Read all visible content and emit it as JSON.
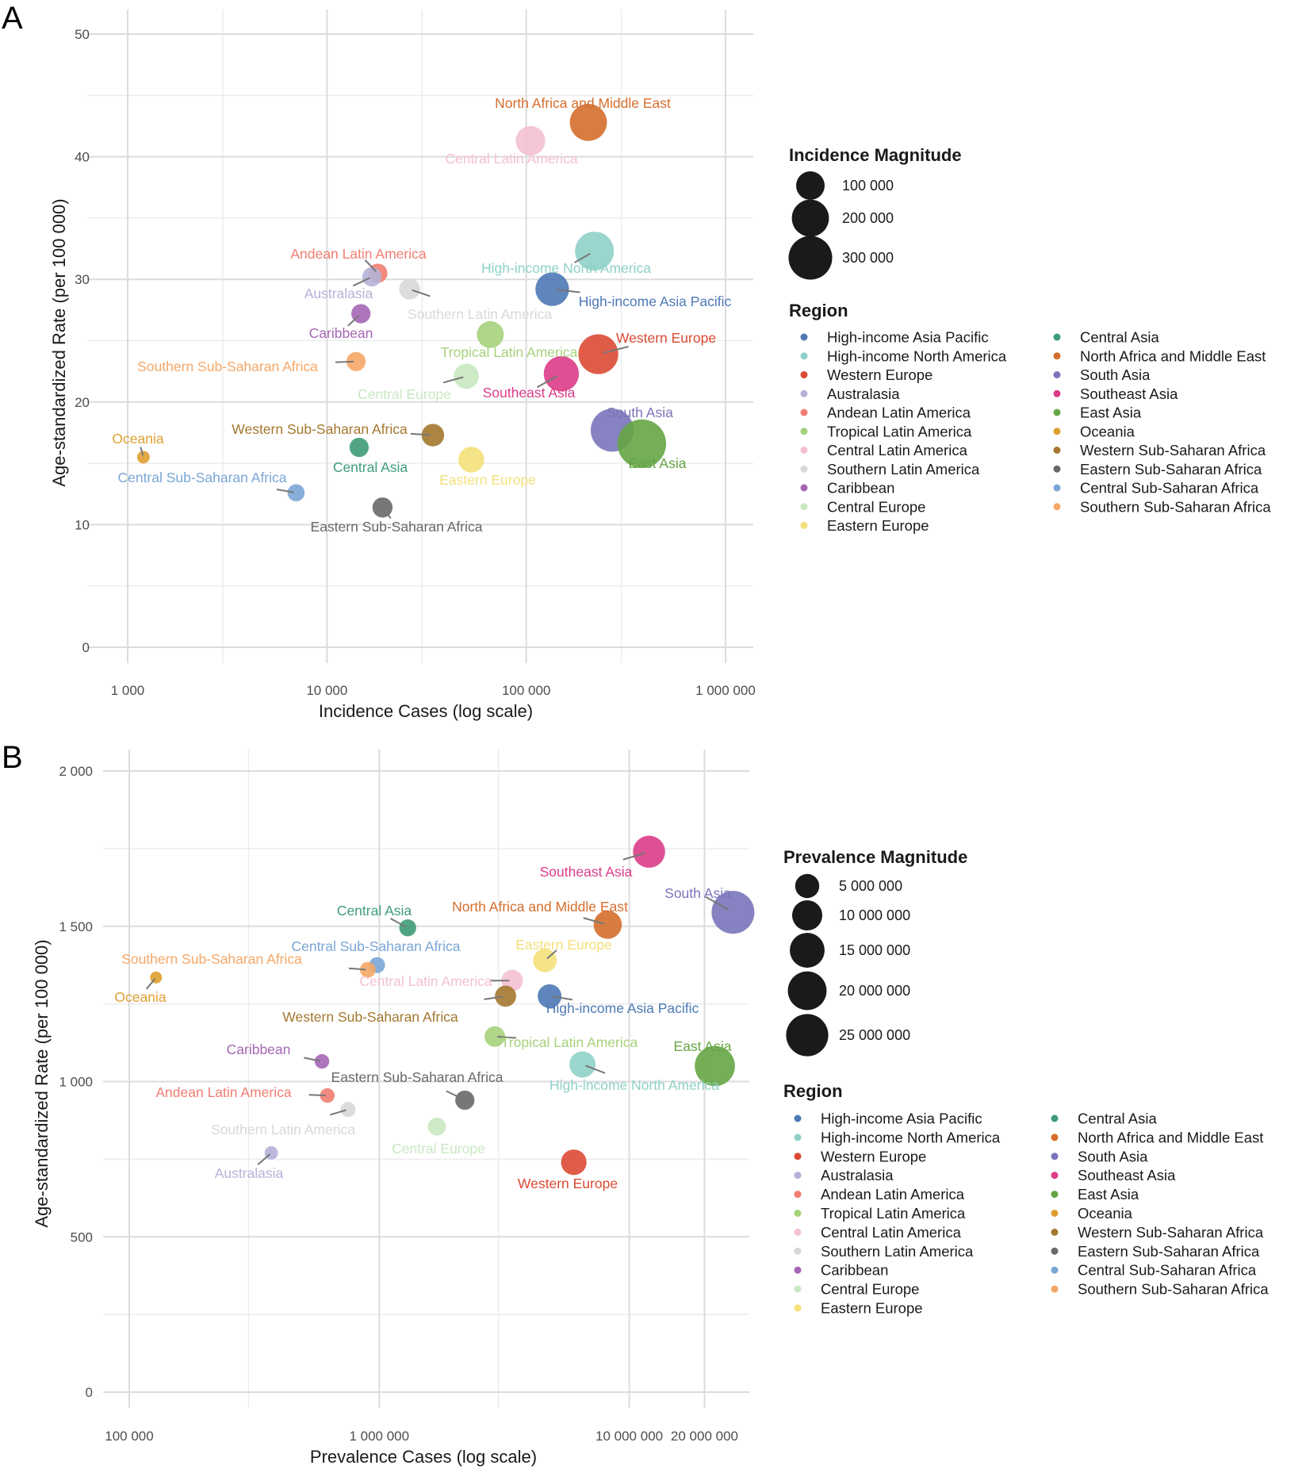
{
  "region_colors": {
    "High-income Asia Pacific": "#4e79b5",
    "High-income North America": "#8fd1c8",
    "Western Europe": "#dc4a34",
    "Australasia": "#b5b2d8",
    "Andean Latin America": "#f07d72",
    "Tropical Latin America": "#a7d27c",
    "Central Latin America": "#f3c0d4",
    "Southern Latin America": "#d8d8d8",
    "Caribbean": "#a566b5",
    "Central Europe": "#c9e8c1",
    "Eastern Europe": "#f4e07a",
    "Central Asia": "#3e9b78",
    "North Africa and Middle East": "#d56e2d",
    "South Asia": "#7a74ba",
    "Southeast Asia": "#dc3c88",
    "East Asia": "#65a544",
    "Oceania": "#df9f30",
    "Western Sub-Saharan Africa": "#a4782f",
    "Eastern Sub-Saharan Africa": "#686868",
    "Central Sub-Saharan Africa": "#7aa6d6",
    "Southern Sub-Saharan Africa": "#f5a767"
  },
  "chart_data": [
    {
      "panel_letter": "A",
      "type": "scatter",
      "xlabel": "Incidence Cases (log scale)",
      "ylabel": "Age-standardized Rate (per 100 000)",
      "xscale": "log",
      "xlim": [
        1000,
        1000000
      ],
      "ylim": [
        0,
        50
      ],
      "xticks": [
        1000,
        10000,
        100000,
        1000000
      ],
      "xtick_labels": [
        "1 000",
        "10 000",
        "100 000",
        "1 000 000"
      ],
      "yticks": [
        0,
        10,
        20,
        30,
        40,
        50
      ],
      "ytick_labels": [
        "0",
        "10",
        "20",
        "30",
        "40",
        "50"
      ],
      "grid": true,
      "size_legend": {
        "title": "Incidence Magnitude",
        "values": [
          100000,
          200000,
          300000
        ],
        "labels": [
          "100 000",
          "200 000",
          "300 000"
        ]
      },
      "color_legend": {
        "title": "Region",
        "entries": [
          "High-income Asia Pacific",
          "High-income North America",
          "Western Europe",
          "Australasia",
          "Andean Latin America",
          "Tropical Latin America",
          "Central Latin America",
          "Southern Latin America",
          "Caribbean",
          "Central Europe",
          "Eastern Europe",
          "Central Asia",
          "North Africa and Middle East",
          "South Asia",
          "Southeast Asia",
          "East Asia",
          "Oceania",
          "Western Sub-Saharan Africa",
          "Eastern Sub-Saharan Africa",
          "Central Sub-Saharan Africa",
          "Southern Sub-Saharan Africa"
        ]
      },
      "points": [
        {
          "region": "North Africa and Middle East",
          "x": 205000,
          "y": 42.8,
          "size": 200000
        },
        {
          "region": "Central Latin America",
          "x": 105000,
          "y": 41.3,
          "size": 110000
        },
        {
          "region": "High-income North America",
          "x": 220000,
          "y": 32.3,
          "size": 225000
        },
        {
          "region": "Andean Latin America",
          "x": 18000,
          "y": 30.5,
          "size": 30000
        },
        {
          "region": "Australasia",
          "x": 16800,
          "y": 30.2,
          "size": 30000
        },
        {
          "region": "Southern Latin America",
          "x": 26000,
          "y": 29.2,
          "size": 40000
        },
        {
          "region": "High-income Asia Pacific",
          "x": 135000,
          "y": 29.2,
          "size": 155000
        },
        {
          "region": "Caribbean",
          "x": 14800,
          "y": 27.2,
          "size": 30000
        },
        {
          "region": "Tropical Latin America",
          "x": 66000,
          "y": 25.5,
          "size": 85000
        },
        {
          "region": "Western Europe",
          "x": 230000,
          "y": 23.9,
          "size": 240000
        },
        {
          "region": "Southern Sub-Saharan Africa",
          "x": 14000,
          "y": 23.3,
          "size": 30000
        },
        {
          "region": "Southeast Asia",
          "x": 150000,
          "y": 22.3,
          "size": 175000
        },
        {
          "region": "Central Europe",
          "x": 50000,
          "y": 22.1,
          "size": 70000
        },
        {
          "region": "South Asia",
          "x": 270000,
          "y": 17.7,
          "size": 290000
        },
        {
          "region": "East Asia",
          "x": 380000,
          "y": 16.6,
          "size": 390000
        },
        {
          "region": "Western Sub-Saharan Africa",
          "x": 34000,
          "y": 17.3,
          "size": 50000
        },
        {
          "region": "Central Asia",
          "x": 14500,
          "y": 16.3,
          "size": 30000
        },
        {
          "region": "Oceania",
          "x": 1200,
          "y": 15.5,
          "size": 5000
        },
        {
          "region": "Eastern Europe",
          "x": 53000,
          "y": 15.3,
          "size": 75000
        },
        {
          "region": "Central Sub-Saharan Africa",
          "x": 7000,
          "y": 12.6,
          "size": 20000
        },
        {
          "region": "Eastern Sub-Saharan Africa",
          "x": 19000,
          "y": 11.4,
          "size": 35000
        }
      ],
      "labels": [
        {
          "region": "North Africa and Middle East",
          "text": "North Africa and Middle East"
        },
        {
          "region": "Central Latin America",
          "text": "Central Latin America"
        },
        {
          "region": "High-income North America",
          "text": "High-income North America"
        },
        {
          "region": "Andean Latin America",
          "text": "Andean Latin America"
        },
        {
          "region": "Australasia",
          "text": "Australasia"
        },
        {
          "region": "Southern Latin America",
          "text": "Southern Latin America"
        },
        {
          "region": "High-income Asia Pacific",
          "text": "High-income Asia Pacific"
        },
        {
          "region": "Caribbean",
          "text": "Caribbean"
        },
        {
          "region": "Tropical Latin America",
          "text": "Tropical Latin America"
        },
        {
          "region": "Western Europe",
          "text": "Western Europe"
        },
        {
          "region": "Southern Sub-Saharan Africa",
          "text": "Southern Sub-Saharan Africa"
        },
        {
          "region": "Southeast Asia",
          "text": "Southeast Asia"
        },
        {
          "region": "Central Europe",
          "text": "Central Europe"
        },
        {
          "region": "South Asia",
          "text": "South Asia"
        },
        {
          "region": "East Asia",
          "text": "East Asia"
        },
        {
          "region": "Western Sub-Saharan Africa",
          "text": "Western Sub-Saharan Africa"
        },
        {
          "region": "Central Asia",
          "text": "Central Asia"
        },
        {
          "region": "Oceania",
          "text": "Oceania"
        },
        {
          "region": "Eastern Europe",
          "text": "Eastern Europe"
        },
        {
          "region": "Central Sub-Saharan Africa",
          "text": "Central Sub-Saharan Africa"
        },
        {
          "region": "Eastern Sub-Saharan Africa",
          "text": "Eastern Sub-Saharan Africa"
        }
      ]
    },
    {
      "panel_letter": "B",
      "type": "scatter",
      "xlabel": "Prevalence Cases (log scale)",
      "ylabel": "Age-standardized Rate (per 100 000)",
      "xscale": "log",
      "xlim": [
        100000,
        30000000
      ],
      "ylim": [
        0,
        2000
      ],
      "xticks": [
        100000,
        1000000,
        10000000,
        20000000
      ],
      "xtick_labels": [
        "100 000",
        "1 000 000",
        "10 000 000",
        "20 000 000"
      ],
      "yticks": [
        0,
        500,
        1000,
        1500,
        2000
      ],
      "ytick_labels": [
        "0",
        "500",
        "1 000",
        "1 500",
        "2 000"
      ],
      "grid": true,
      "size_legend": {
        "title": "Prevalence Magnitude",
        "values": [
          5000000,
          10000000,
          15000000,
          20000000,
          25000000
        ],
        "labels": [
          "5 000 000",
          "10 000 000",
          "15 000 000",
          "20 000 000",
          "25 000 000"
        ]
      },
      "color_legend": {
        "title": "Region",
        "entries": [
          "High-income Asia Pacific",
          "High-income North America",
          "Western Europe",
          "Australasia",
          "Andean Latin America",
          "Tropical Latin America",
          "Central Latin America",
          "Southern Latin America",
          "Caribbean",
          "Central Europe",
          "Eastern Europe",
          "Central Asia",
          "North Africa and Middle East",
          "South Asia",
          "Southeast Asia",
          "East Asia",
          "Oceania",
          "Western Sub-Saharan Africa",
          "Eastern Sub-Saharan Africa",
          "Central Sub-Saharan Africa",
          "Southern Sub-Saharan Africa"
        ]
      },
      "points": [
        {
          "region": "Southeast Asia",
          "x": 12000000,
          "y": 1740,
          "size": 12000000
        },
        {
          "region": "South Asia",
          "x": 26000000,
          "y": 1545,
          "size": 26000000
        },
        {
          "region": "North Africa and Middle East",
          "x": 8200000,
          "y": 1505,
          "size": 8200000
        },
        {
          "region": "Central Asia",
          "x": 1300000,
          "y": 1495,
          "size": 1300000
        },
        {
          "region": "Eastern Europe",
          "x": 4600000,
          "y": 1390,
          "size": 4600000
        },
        {
          "region": "Central Sub-Saharan Africa",
          "x": 980000,
          "y": 1375,
          "size": 980000
        },
        {
          "region": "Southern Sub-Saharan Africa",
          "x": 900000,
          "y": 1360,
          "size": 900000
        },
        {
          "region": "Oceania",
          "x": 128000,
          "y": 1335,
          "size": 128000
        },
        {
          "region": "Central Latin America",
          "x": 3400000,
          "y": 1325,
          "size": 3400000
        },
        {
          "region": "Western Sub-Saharan Africa",
          "x": 3200000,
          "y": 1275,
          "size": 3200000
        },
        {
          "region": "High-income Asia Pacific",
          "x": 4800000,
          "y": 1275,
          "size": 4800000
        },
        {
          "region": "Tropical Latin America",
          "x": 2900000,
          "y": 1145,
          "size": 2900000
        },
        {
          "region": "Caribbean",
          "x": 590000,
          "y": 1065,
          "size": 590000
        },
        {
          "region": "High-income North America",
          "x": 6500000,
          "y": 1055,
          "size": 6500000
        },
        {
          "region": "East Asia",
          "x": 22000000,
          "y": 1050,
          "size": 22000000
        },
        {
          "region": "Andean Latin America",
          "x": 620000,
          "y": 955,
          "size": 620000
        },
        {
          "region": "Eastern Sub-Saharan Africa",
          "x": 2200000,
          "y": 940,
          "size": 2200000
        },
        {
          "region": "Southern Latin America",
          "x": 750000,
          "y": 910,
          "size": 750000
        },
        {
          "region": "Central Europe",
          "x": 1700000,
          "y": 855,
          "size": 1700000
        },
        {
          "region": "Australasia",
          "x": 370000,
          "y": 770,
          "size": 370000
        },
        {
          "region": "Western Europe",
          "x": 6000000,
          "y": 740,
          "size": 6000000
        }
      ],
      "labels": [
        {
          "region": "Southeast Asia",
          "text": "Southeast Asia"
        },
        {
          "region": "South Asia",
          "text": "South Asia"
        },
        {
          "region": "North Africa and Middle East",
          "text": "North Africa and Middle East"
        },
        {
          "region": "Central Asia",
          "text": "Central Asia"
        },
        {
          "region": "Eastern Europe",
          "text": "Eastern Europe"
        },
        {
          "region": "Central Sub-Saharan Africa",
          "text": "Central Sub-Saharan Africa"
        },
        {
          "region": "Southern Sub-Saharan Africa",
          "text": "Southern Sub-Saharan Africa"
        },
        {
          "region": "Oceania",
          "text": "Oceania"
        },
        {
          "region": "Central Latin America",
          "text": "Central Latin America"
        },
        {
          "region": "Western Sub-Saharan Africa",
          "text": "Western Sub-Saharan Africa"
        },
        {
          "region": "High-income Asia Pacific",
          "text": "High-income Asia Pacific"
        },
        {
          "region": "Tropical Latin America",
          "text": "Tropical Latin America"
        },
        {
          "region": "Caribbean",
          "text": "Caribbean"
        },
        {
          "region": "High-income North America",
          "text": "High-income North America"
        },
        {
          "region": "East Asia",
          "text": "East Asia"
        },
        {
          "region": "Andean Latin America",
          "text": "Andean Latin America"
        },
        {
          "region": "Eastern Sub-Saharan Africa",
          "text": "Eastern Sub-Saharan Africa"
        },
        {
          "region": "Southern Latin America",
          "text": "Southern Latin America"
        },
        {
          "region": "Central Europe",
          "text": "Central Europe"
        },
        {
          "region": "Australasia",
          "text": "Australasia"
        },
        {
          "region": "Western Europe",
          "text": "Western Europe"
        }
      ]
    }
  ]
}
